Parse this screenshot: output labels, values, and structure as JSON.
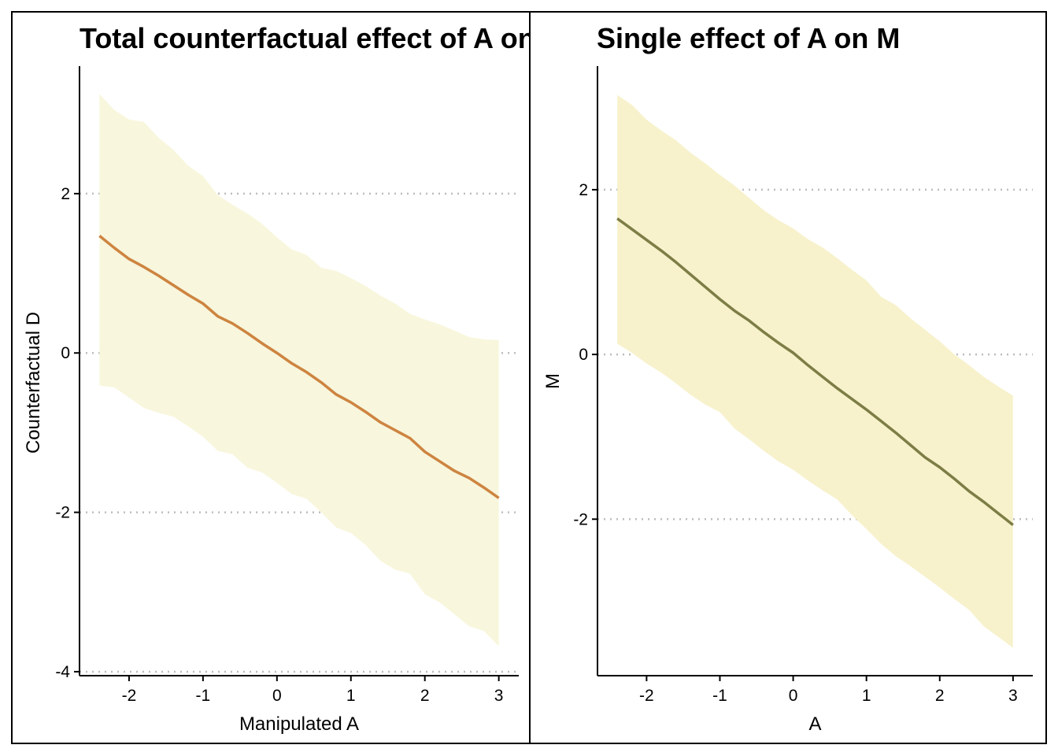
{
  "chart_data": [
    {
      "type": "line",
      "title": "Total counterfactual effect of A on D",
      "xlabel": "Manipulated A",
      "ylabel": "Counterfactual D",
      "xlim": [
        -2.67,
        3.27
      ],
      "ylim": [
        -4.05,
        3.6
      ],
      "xticks": [
        "-2",
        "-1",
        "0",
        "1",
        "2",
        "3"
      ],
      "yticks": [
        "-4",
        "-2",
        "0",
        "2"
      ],
      "xtick_values": [
        -2,
        -1,
        0,
        1,
        2,
        3
      ],
      "ytick_values": [
        -4,
        -2,
        0,
        2
      ],
      "grid": "dotted horizontal at y ticks",
      "line_color": "#cd8440",
      "band_color": "#f8f6dc",
      "series": [
        {
          "x": [
            -2.4,
            -2.2,
            -2.0,
            -1.8,
            -1.6,
            -1.4,
            -1.2,
            -1.0,
            -0.8,
            -0.6,
            -0.4,
            -0.2,
            0.0,
            0.2,
            0.4,
            0.6,
            0.8,
            1.0,
            1.2,
            1.4,
            1.6,
            1.8,
            2.0,
            2.2,
            2.4,
            2.6,
            2.8,
            3.0
          ],
          "mean": [
            1.47,
            1.32,
            1.18,
            1.08,
            0.97,
            0.85,
            0.73,
            0.62,
            0.46,
            0.37,
            0.25,
            0.12,
            0.0,
            -0.13,
            -0.24,
            -0.37,
            -0.52,
            -0.62,
            -0.74,
            -0.87,
            -0.97,
            -1.07,
            -1.24,
            -1.36,
            -1.48,
            -1.57,
            -1.69,
            -1.82
          ],
          "upper": [
            3.25,
            3.05,
            2.93,
            2.9,
            2.7,
            2.55,
            2.35,
            2.22,
            1.98,
            1.86,
            1.75,
            1.62,
            1.45,
            1.3,
            1.23,
            1.07,
            1.03,
            0.94,
            0.84,
            0.72,
            0.62,
            0.49,
            0.42,
            0.36,
            0.28,
            0.2,
            0.17,
            0.16
          ],
          "lower": [
            -0.41,
            -0.43,
            -0.56,
            -0.69,
            -0.75,
            -0.8,
            -0.92,
            -1.05,
            -1.23,
            -1.27,
            -1.44,
            -1.5,
            -1.63,
            -1.77,
            -1.83,
            -2.0,
            -2.19,
            -2.26,
            -2.41,
            -2.61,
            -2.72,
            -2.77,
            -3.03,
            -3.13,
            -3.28,
            -3.43,
            -3.49,
            -3.68
          ]
        }
      ]
    },
    {
      "type": "line",
      "title": "Single effect of A on M",
      "xlabel": "A",
      "ylabel": "M",
      "xlim": [
        -2.67,
        3.27
      ],
      "ylim": [
        -3.9,
        3.5
      ],
      "xticks": [
        "-2",
        "-1",
        "0",
        "1",
        "2",
        "3"
      ],
      "yticks": [
        "-2",
        "0",
        "2"
      ],
      "xtick_values": [
        -2,
        -1,
        0,
        1,
        2,
        3
      ],
      "ytick_values": [
        -2,
        0,
        2
      ],
      "grid": "dotted horizontal at y ticks",
      "line_color": "#7d7d46",
      "band_color": "#f7f2cc",
      "series": [
        {
          "x": [
            -2.4,
            -2.2,
            -2.0,
            -1.8,
            -1.6,
            -1.4,
            -1.2,
            -1.0,
            -0.8,
            -0.6,
            -0.4,
            -0.2,
            0.0,
            0.2,
            0.4,
            0.6,
            0.8,
            1.0,
            1.2,
            1.4,
            1.6,
            1.8,
            2.0,
            2.2,
            2.4,
            2.6,
            2.8,
            3.0
          ],
          "mean": [
            1.65,
            1.52,
            1.39,
            1.26,
            1.12,
            0.97,
            0.82,
            0.67,
            0.53,
            0.41,
            0.27,
            0.14,
            0.02,
            -0.13,
            -0.27,
            -0.41,
            -0.54,
            -0.67,
            -0.81,
            -0.95,
            -1.1,
            -1.25,
            -1.37,
            -1.51,
            -1.66,
            -1.79,
            -1.93,
            -2.07
          ],
          "upper": [
            3.15,
            3.03,
            2.85,
            2.72,
            2.6,
            2.45,
            2.32,
            2.18,
            2.05,
            1.9,
            1.75,
            1.63,
            1.53,
            1.4,
            1.3,
            1.17,
            1.03,
            0.9,
            0.7,
            0.6,
            0.44,
            0.3,
            0.16,
            0.0,
            -0.13,
            -0.27,
            -0.39,
            -0.5
          ],
          "lower": [
            0.13,
            0.02,
            -0.11,
            -0.22,
            -0.35,
            -0.49,
            -0.61,
            -0.7,
            -0.9,
            -1.03,
            -1.17,
            -1.3,
            -1.4,
            -1.53,
            -1.65,
            -1.76,
            -1.95,
            -2.12,
            -2.3,
            -2.45,
            -2.57,
            -2.7,
            -2.83,
            -2.97,
            -3.1,
            -3.3,
            -3.43,
            -3.56
          ]
        }
      ]
    }
  ]
}
